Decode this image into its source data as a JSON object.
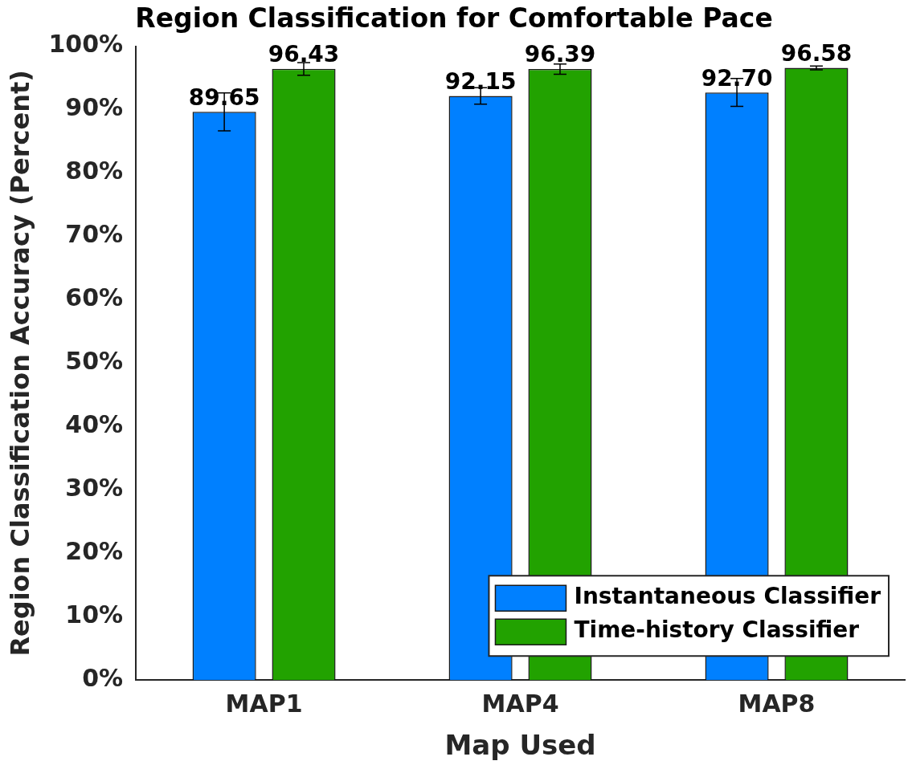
{
  "chart_data": {
    "type": "bar",
    "title": "Region Classification for Comfortable Pace",
    "xlabel": "Map Used",
    "ylabel": "Region Classification Accuracy (Percent)",
    "categories": [
      "MAP1",
      "MAP4",
      "MAP8"
    ],
    "series": [
      {
        "name": "Instantaneous Classifier",
        "color": "#0080ff",
        "values": [
          89.65,
          92.15,
          92.7
        ],
        "errors": [
          3.0,
          1.3,
          2.2
        ],
        "value_labels": [
          "89.65",
          "92.15",
          "92.70"
        ]
      },
      {
        "name": "Time-history Classifier",
        "color": "#22a200",
        "values": [
          96.43,
          96.39,
          96.58
        ],
        "errors": [
          1.0,
          0.8,
          0.3
        ],
        "value_labels": [
          "96.43",
          "96.39",
          "96.58"
        ]
      }
    ],
    "ylim": [
      0,
      100
    ],
    "yticks": [
      {
        "value": 0,
        "label": "0%"
      },
      {
        "value": 10,
        "label": "10%"
      },
      {
        "value": 20,
        "label": "20%"
      },
      {
        "value": 30,
        "label": "30%"
      },
      {
        "value": 40,
        "label": "40%"
      },
      {
        "value": 50,
        "label": "50%"
      },
      {
        "value": 60,
        "label": "60%"
      },
      {
        "value": 70,
        "label": "70%"
      },
      {
        "value": 80,
        "label": "80%"
      },
      {
        "value": 90,
        "label": "90%"
      },
      {
        "value": 100,
        "label": "100%"
      }
    ],
    "grid": false,
    "legend": "bottom right"
  }
}
